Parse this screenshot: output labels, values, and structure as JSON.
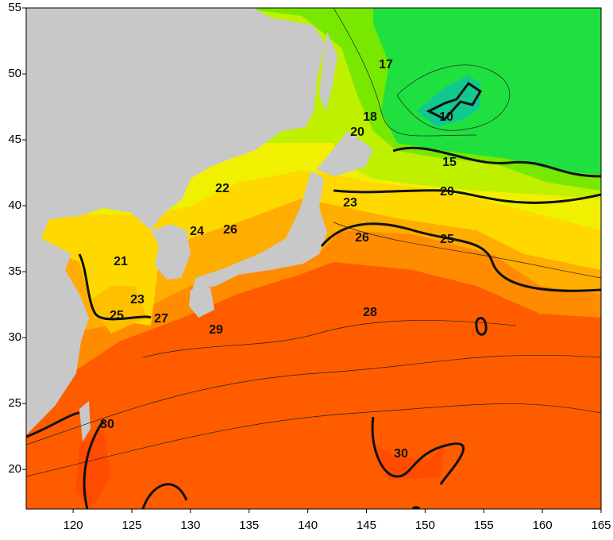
{
  "chart_data": {
    "type": "contour",
    "xlim": [
      116,
      165
    ],
    "ylim": [
      17,
      55
    ],
    "xticks": [
      120,
      125,
      130,
      135,
      140,
      145,
      150,
      155,
      160,
      165
    ],
    "yticks": [
      20,
      25,
      30,
      35,
      40,
      45,
      50,
      55
    ],
    "contour_labels": [
      10,
      15,
      17,
      18,
      20,
      20,
      21,
      22,
      23,
      23,
      24,
      25,
      25,
      26,
      26,
      27,
      28,
      29,
      30,
      30
    ]
  }
}
